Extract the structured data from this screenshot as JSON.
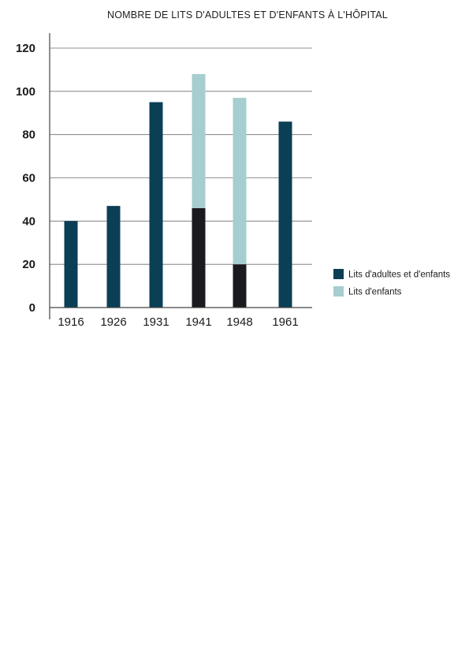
{
  "chart_data": {
    "type": "bar",
    "stacked": true,
    "title": "NOMBRE DE LITS D'ADULTES ET D'ENFANTS À L'HÔPITAL",
    "xlabel": "",
    "ylabel": "",
    "categories": [
      "1916",
      "1926",
      "1931",
      "1941",
      "1948",
      "1961"
    ],
    "ylim": [
      0,
      120
    ],
    "yticks": [
      0,
      20,
      40,
      60,
      80,
      100,
      120
    ],
    "grid": true,
    "legend_position": "right",
    "series": [
      {
        "name": "Lits d'adultes et d'enfants",
        "values": [
          40,
          47,
          95,
          46,
          20,
          86
        ],
        "color": "#0b3f55"
      },
      {
        "name": "Lits d'enfants",
        "values": [
          0,
          0,
          0,
          62,
          77,
          0
        ],
        "color": "#a6cdcf"
      }
    ],
    "overlap_color": "#1b1b1f"
  }
}
